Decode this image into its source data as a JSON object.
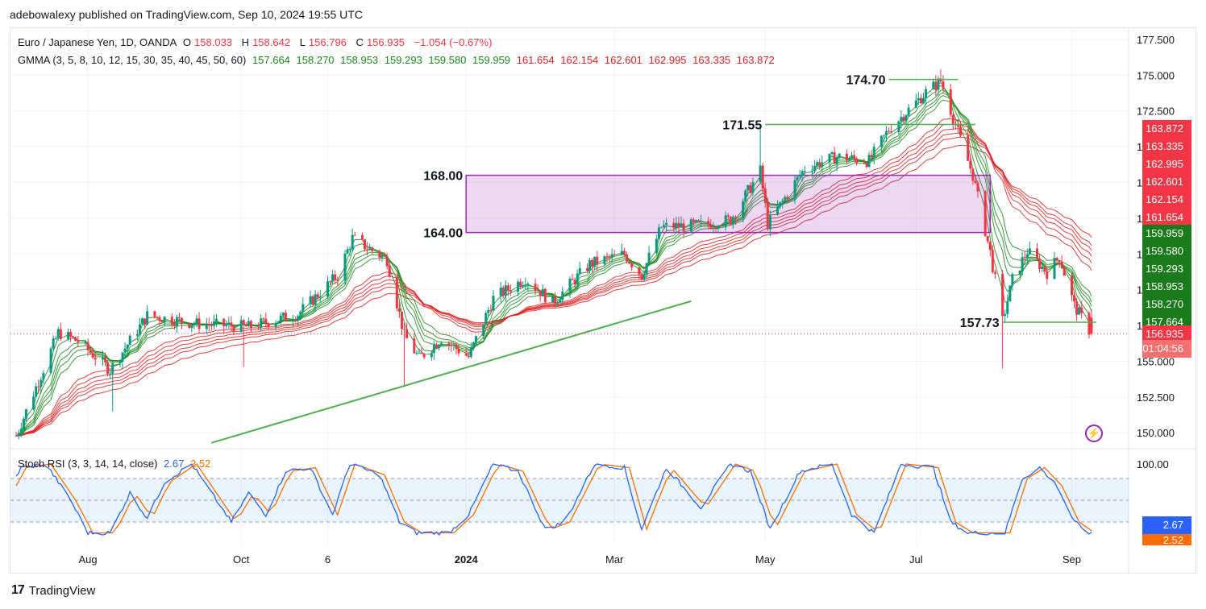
{
  "header": {
    "publisher": "adebowalexy published on TradingView.com, Sep 10, 2024 19:55 UTC"
  },
  "legend": {
    "symbol": "Euro / Japanese Yen, 1D, OANDA",
    "o_label": "O",
    "o": "158.033",
    "h_label": "H",
    "h": "158.642",
    "l_label": "L",
    "l": "156.796",
    "c_label": "C",
    "c": "156.935",
    "change": "−1.054 (−0.67%)",
    "gmma_title": "GMMA (3, 5, 8, 10, 12, 15, 30, 35, 40, 45, 50, 60)",
    "gmma_values_green": [
      "157.664",
      "158.270",
      "158.953",
      "159.293",
      "159.580",
      "159.959"
    ],
    "gmma_values_red": [
      "161.654",
      "162.154",
      "162.601",
      "162.995",
      "163.335",
      "163.872"
    ],
    "stoch_title": "Stoch RSI (3, 3, 14, 14, close)",
    "stoch_k": "2.67",
    "stoch_d": "2.52"
  },
  "colors": {
    "up": "#089981",
    "down": "#f23645",
    "gmma_short": "#1b8a1b",
    "gmma_long": "#e01e1e",
    "zone": "#9c27b0",
    "stoch_k": "#2962ff",
    "stoch_d": "#ff6d00"
  },
  "badges": {
    "red": [
      "163.872",
      "163.335",
      "162.995",
      "162.601",
      "162.154",
      "161.654"
    ],
    "green": [
      "159.959",
      "159.580",
      "159.293",
      "158.953",
      "158.270",
      "157.664"
    ],
    "last_price": "156.935",
    "countdown": "01:04:56",
    "stoch_k": "2.67",
    "stoch_d": "2.52"
  },
  "annotations": {
    "level_1": "174.70",
    "level_2": "171.55",
    "zone_top": "168.00",
    "zone_bottom": "164.00",
    "level_3": "157.73"
  },
  "footer": {
    "brand": "TradingView",
    "logo": "17"
  },
  "chart_data": [
    {
      "type": "candlestick",
      "title": "Euro / Japanese Yen, 1D, OANDA",
      "ylim": [
        149.0,
        178.0
      ],
      "y_ticks": [
        "150.000",
        "152.500",
        "155.000",
        "157.500",
        "160.000",
        "162.500",
        "165.000",
        "167.500",
        "170.000",
        "172.500",
        "175.000",
        "177.500"
      ],
      "x_ticks": [
        "Aug",
        "Oct",
        "6",
        "2024",
        "Mar",
        "May",
        "Jul",
        "Sep"
      ],
      "x_tick_dates": [
        "2023-08-01",
        "2023-10-02",
        "2023-11-06",
        "2024-01-01",
        "2024-03-01",
        "2024-05-01",
        "2024-07-01",
        "2024-09-02"
      ],
      "x_range": [
        "2023-07-01",
        "2024-09-25"
      ],
      "grid": true,
      "approx_close_path": [
        [
          "2023-07-03",
          149.8
        ],
        [
          "2023-07-20",
          157.0
        ],
        [
          "2023-07-28",
          156.4
        ],
        [
          "2023-08-10",
          154.4
        ],
        [
          "2023-08-25",
          158.2
        ],
        [
          "2023-09-15",
          157.6
        ],
        [
          "2023-10-05",
          157.4
        ],
        [
          "2023-10-25",
          158.3
        ],
        [
          "2023-11-10",
          161.0
        ],
        [
          "2023-11-16",
          163.6
        ],
        [
          "2023-11-30",
          162.1
        ],
        [
          "2023-12-07",
          156.8
        ],
        [
          "2023-12-13",
          155.2
        ],
        [
          "2023-12-22",
          156.6
        ],
        [
          "2024-01-02",
          155.3
        ],
        [
          "2024-01-12",
          159.4
        ],
        [
          "2024-01-25",
          160.8
        ],
        [
          "2024-02-05",
          159.1
        ],
        [
          "2024-02-20",
          161.8
        ],
        [
          "2024-03-05",
          162.5
        ],
        [
          "2024-03-12",
          161.0
        ],
        [
          "2024-03-20",
          164.4
        ],
        [
          "2024-04-05",
          164.5
        ],
        [
          "2024-04-17",
          164.9
        ],
        [
          "2024-04-29",
          168.3
        ],
        [
          "2024-05-02",
          164.6
        ],
        [
          "2024-05-17",
          168.5
        ],
        [
          "2024-05-30",
          169.3
        ],
        [
          "2024-06-12",
          169.0
        ],
        [
          "2024-06-20",
          171.2
        ],
        [
          "2024-07-05",
          173.8
        ],
        [
          "2024-07-11",
          174.6
        ],
        [
          "2024-07-18",
          171.0
        ],
        [
          "2024-07-24",
          168.0
        ],
        [
          "2024-07-31",
          162.6
        ],
        [
          "2024-08-05",
          157.8
        ],
        [
          "2024-08-09",
          160.7
        ],
        [
          "2024-08-15",
          162.7
        ],
        [
          "2024-08-23",
          161.2
        ],
        [
          "2024-08-28",
          162.3
        ],
        [
          "2024-09-03",
          158.9
        ],
        [
          "2024-09-10",
          156.9
        ]
      ],
      "last_candle": {
        "o": 158.033,
        "h": 158.642,
        "l": 156.796,
        "c": 156.935
      },
      "trendline_points": [
        [
          "2023-09-20",
          149.3
        ],
        [
          "2024-04-01",
          159.2
        ]
      ],
      "horizontal_levels": [
        {
          "label": "174.70",
          "value": 174.7,
          "from": "2024-06-20",
          "to": "2024-07-18"
        },
        {
          "label": "171.55",
          "value": 171.55,
          "from": "2024-05-01",
          "to": "2024-07-25"
        },
        {
          "label": "157.73",
          "value": 157.73,
          "from": "2024-08-05",
          "to": "2024-09-12"
        }
      ],
      "zone": {
        "top": 168.0,
        "bottom": 164.0,
        "from": "2024-01-01",
        "to": "2024-07-31"
      }
    },
    {
      "type": "line",
      "title": "Stoch RSI (3, 3, 14, 14, close)",
      "ylim": [
        0,
        100
      ],
      "y_ticks": [
        "100.00"
      ],
      "bands": [
        80,
        20
      ],
      "series": [
        {
          "name": "K",
          "last": 2.67
        },
        {
          "name": "D",
          "last": 2.52
        }
      ],
      "approx_k_path": [
        [
          "2023-07-01",
          70
        ],
        [
          "2023-07-05",
          95
        ],
        [
          "2023-07-15",
          100
        ],
        [
          "2023-07-25",
          50
        ],
        [
          "2023-08-01",
          5
        ],
        [
          "2023-08-10",
          5
        ],
        [
          "2023-08-18",
          60
        ],
        [
          "2023-08-25",
          25
        ],
        [
          "2023-09-01",
          75
        ],
        [
          "2023-09-12",
          100
        ],
        [
          "2023-09-20",
          60
        ],
        [
          "2023-09-28",
          20
        ],
        [
          "2023-10-05",
          60
        ],
        [
          "2023-10-12",
          30
        ],
        [
          "2023-10-20",
          90
        ],
        [
          "2023-10-30",
          95
        ],
        [
          "2023-11-08",
          30
        ],
        [
          "2023-11-15",
          100
        ],
        [
          "2023-11-27",
          85
        ],
        [
          "2023-12-05",
          20
        ],
        [
          "2023-12-12",
          5
        ],
        [
          "2023-12-25",
          5
        ],
        [
          "2024-01-02",
          30
        ],
        [
          "2024-01-12",
          100
        ],
        [
          "2024-01-22",
          90
        ],
        [
          "2024-02-02",
          10
        ],
        [
          "2024-02-10",
          20
        ],
        [
          "2024-02-22",
          100
        ],
        [
          "2024-03-05",
          95
        ],
        [
          "2024-03-12",
          10
        ],
        [
          "2024-03-22",
          95
        ],
        [
          "2024-04-05",
          40
        ],
        [
          "2024-04-17",
          100
        ],
        [
          "2024-04-25",
          90
        ],
        [
          "2024-05-03",
          10
        ],
        [
          "2024-05-15",
          90
        ],
        [
          "2024-05-28",
          100
        ],
        [
          "2024-06-05",
          30
        ],
        [
          "2024-06-14",
          5
        ],
        [
          "2024-06-25",
          100
        ],
        [
          "2024-07-08",
          95
        ],
        [
          "2024-07-15",
          20
        ],
        [
          "2024-07-22",
          5
        ],
        [
          "2024-08-06",
          5
        ],
        [
          "2024-08-13",
          80
        ],
        [
          "2024-08-20",
          95
        ],
        [
          "2024-08-27",
          70
        ],
        [
          "2024-09-03",
          20
        ],
        [
          "2024-09-10",
          3
        ]
      ]
    }
  ]
}
